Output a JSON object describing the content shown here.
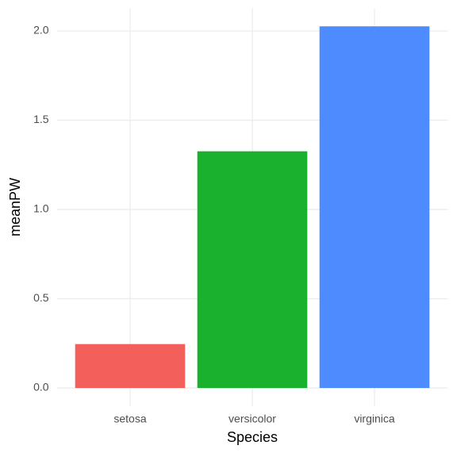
{
  "chart_data": {
    "type": "bar",
    "x_label": "Species",
    "y_label": "meanPW",
    "categories": [
      "setosa",
      "versicolor",
      "virginica"
    ],
    "values": [
      0.246,
      1.326,
      2.026
    ],
    "colors": [
      "#f35f5b",
      "#1ab12f",
      "#4e8bff"
    ],
    "ylim": [
      -0.1013,
      2.1273
    ],
    "yticks": [
      {
        "value": 0,
        "label": "0.0"
      },
      {
        "value": 0.5,
        "label": "0.5"
      },
      {
        "value": 1,
        "label": "1.0"
      },
      {
        "value": 1.5,
        "label": "1.5"
      },
      {
        "value": 2,
        "label": "2.0"
      }
    ],
    "grid": true
  }
}
